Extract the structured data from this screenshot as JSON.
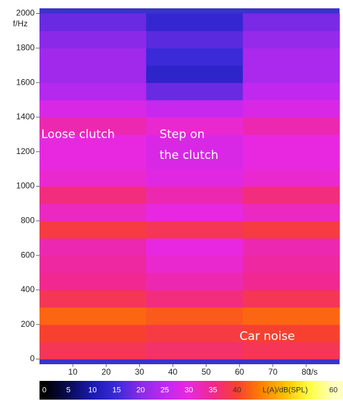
{
  "chart_data": {
    "type": "heatmap",
    "y_label": "f/Hz",
    "x_label": "t/s",
    "xlim": [
      0,
      90
    ],
    "ylim": [
      -30,
      2030
    ],
    "xticks": [
      10,
      20,
      30,
      40,
      50,
      60,
      70,
      80
    ],
    "yticks": [
      0,
      200,
      400,
      600,
      800,
      1000,
      1200,
      1400,
      1600,
      1800,
      2000
    ],
    "xbins": [
      0,
      32,
      61,
      90
    ],
    "ybins": [
      0,
      100,
      200,
      300,
      400,
      500,
      600,
      700,
      800,
      900,
      1000,
      1100,
      1200,
      1300,
      1400,
      1500,
      1600,
      1700,
      1800,
      1900,
      2000
    ],
    "z": [
      [
        38,
        37,
        38
      ],
      [
        40,
        39,
        40
      ],
      [
        43,
        42,
        43
      ],
      [
        38,
        36,
        38
      ],
      [
        35,
        33,
        35
      ],
      [
        34,
        31,
        34
      ],
      [
        33,
        30,
        33
      ],
      [
        39,
        38,
        39
      ],
      [
        32,
        30,
        32
      ],
      [
        36,
        33,
        36
      ],
      [
        31,
        29,
        31
      ],
      [
        30,
        28,
        30
      ],
      [
        30,
        28,
        30
      ],
      [
        33,
        31,
        33
      ],
      [
        28,
        26,
        28
      ],
      [
        24,
        18,
        25
      ],
      [
        22,
        13,
        23
      ],
      [
        22,
        15,
        23
      ],
      [
        20,
        17,
        21
      ],
      [
        18,
        14,
        19
      ]
    ],
    "colorbar": {
      "label": "L(A)/dB(SPL)",
      "clim": [
        -1,
        62
      ],
      "ticks": [
        0,
        5,
        10,
        15,
        20,
        25,
        30,
        35,
        40,
        60
      ]
    },
    "colormap": [
      {
        "value": 0,
        "color": "#000000"
      },
      {
        "value": 5,
        "color": "#0a0a55"
      },
      {
        "value": 10,
        "color": "#1a1ab4"
      },
      {
        "value": 15,
        "color": "#3a2ad8"
      },
      {
        "value": 20,
        "color": "#8a2ae8"
      },
      {
        "value": 25,
        "color": "#c028f0"
      },
      {
        "value": 30,
        "color": "#e828e0"
      },
      {
        "value": 35,
        "color": "#f02890"
      },
      {
        "value": 40,
        "color": "#f84030"
      },
      {
        "value": 45,
        "color": "#ff8000"
      },
      {
        "value": 50,
        "color": "#ffc000"
      },
      {
        "value": 55,
        "color": "#ffff40"
      },
      {
        "value": 60,
        "color": "#ffffc0"
      }
    ],
    "annotations": [
      {
        "lines": [
          "Loose clutch"
        ],
        "x": 0.5,
        "y": 1300
      },
      {
        "lines": [
          "Step on",
          "the clutch"
        ],
        "x": 36,
        "y": 1300
      },
      {
        "lines": [
          "Car noise"
        ],
        "x": 60,
        "y": 130
      }
    ]
  }
}
